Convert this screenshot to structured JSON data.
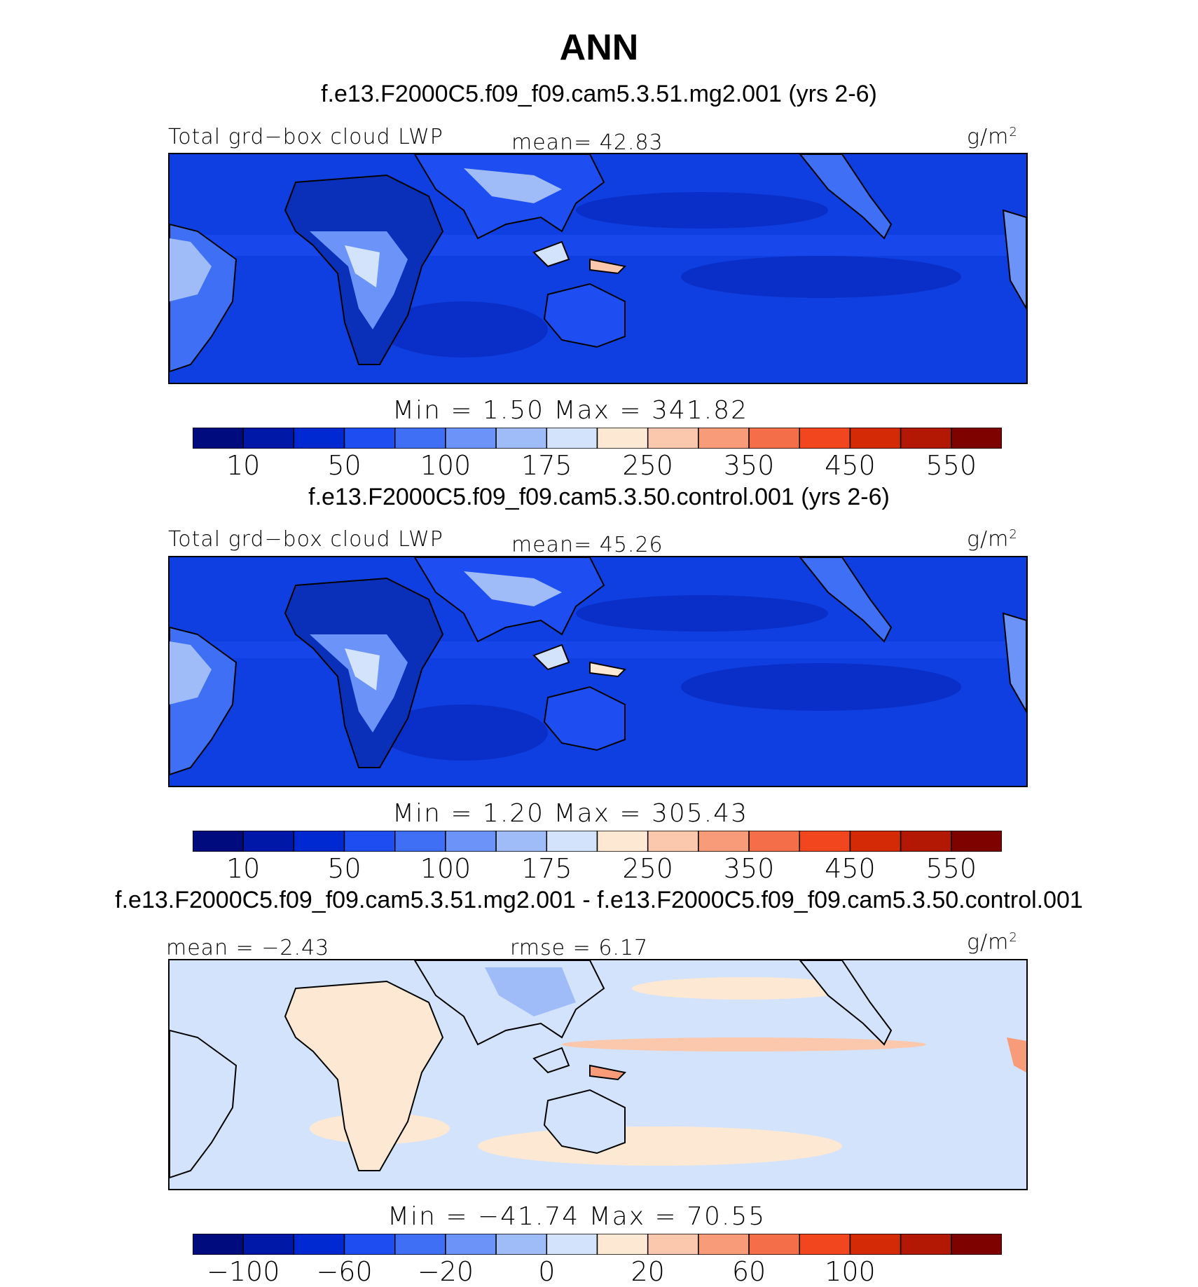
{
  "header": {
    "title": "ANN"
  },
  "panels": [
    {
      "case_title": "f.e13.F2000C5.f09_f09.cam5.3.51.mg2.001 (yrs 2-6)",
      "left_label": "Total grd−box cloud LWP",
      "center_label": "mean=  42.83",
      "units": "g/m",
      "units_sup": "2",
      "minmax": "Min =    1.50 Max = 341.82",
      "colorbar_ticks": [
        "10",
        "50",
        "100",
        "175",
        "250",
        "350",
        "450",
        "550"
      ]
    },
    {
      "case_title": "f.e13.F2000C5.f09_f09.cam5.3.50.control.001 (yrs 2-6)",
      "left_label": "Total grd−box cloud LWP",
      "center_label": "mean=  45.26",
      "units": "g/m",
      "units_sup": "2",
      "minmax": "Min =    1.20 Max = 305.43",
      "colorbar_ticks": [
        "10",
        "50",
        "100",
        "175",
        "250",
        "350",
        "450",
        "550"
      ]
    },
    {
      "case_title": "f.e13.F2000C5.f09_f09.cam5.3.51.mg2.001 - f.e13.F2000C5.f09_f09.cam5.3.50.control.001",
      "left_label": "mean =  −2.43",
      "center_label": "rmse =    6.17",
      "units": "g/m",
      "units_sup": "2",
      "minmax": "Min = −41.74 Max =   70.55",
      "colorbar_ticks": [
        "−100",
        "−60",
        "−20",
        "0",
        "20",
        "60",
        "100"
      ]
    }
  ],
  "colors": {
    "palette": [
      "#000b7e",
      "#0018a8",
      "#0029d1",
      "#1e4ef2",
      "#3f6ff5",
      "#6c93f7",
      "#9fbcf9",
      "#d2e3fb",
      "#fde8d3",
      "#fbc8ae",
      "#f89b79",
      "#f56e4a",
      "#f2461f",
      "#d52a06",
      "#b21803",
      "#7e0300"
    ]
  },
  "chart_data": [
    {
      "type": "heatmap",
      "title": "f.e13.F2000C5.f09_f09.cam5.3.51.mg2.001 (yrs 2-6)",
      "variable": "Total grd-box cloud LWP",
      "units": "g/m2",
      "mean": 42.83,
      "min": 1.5,
      "max": 341.82,
      "levels": [
        10,
        25,
        50,
        75,
        100,
        125,
        150,
        175,
        200,
        250,
        300,
        350,
        400,
        450,
        500,
        550
      ]
    },
    {
      "type": "heatmap",
      "title": "f.e13.F2000C5.f09_f09.cam5.3.50.control.001 (yrs 2-6)",
      "variable": "Total grd-box cloud LWP",
      "units": "g/m2",
      "mean": 45.26,
      "min": 1.2,
      "max": 305.43,
      "levels": [
        10,
        25,
        50,
        75,
        100,
        125,
        150,
        175,
        200,
        250,
        300,
        350,
        400,
        450,
        500,
        550
      ]
    },
    {
      "type": "heatmap",
      "title": "f.e13.F2000C5.f09_f09.cam5.3.51.mg2.001 - f.e13.F2000C5.f09_f09.cam5.3.50.control.001",
      "variable": "difference",
      "units": "g/m2",
      "mean": -2.43,
      "rmse": 6.17,
      "min": -41.74,
      "max": 70.55,
      "levels": [
        -120,
        -100,
        -80,
        -60,
        -40,
        -20,
        -10,
        0,
        10,
        20,
        40,
        60,
        80,
        100,
        120
      ]
    }
  ]
}
